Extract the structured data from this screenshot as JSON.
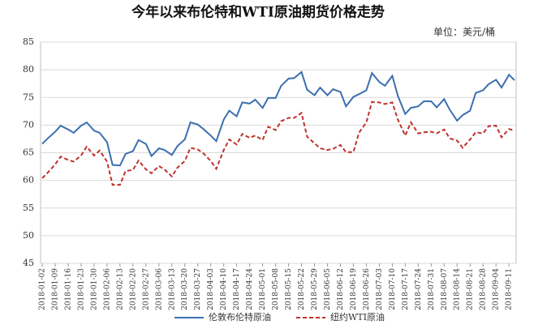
{
  "chart_data": {
    "type": "line",
    "title": "今年以来布伦特和WTI原油期货价格走势",
    "unit": "单位：美元/桶",
    "x": [
      "2018-01-02",
      "2018-01-05",
      "2018-01-09",
      "2018-01-12",
      "2018-01-16",
      "2018-01-19",
      "2018-01-23",
      "2018-01-26",
      "2018-01-30",
      "2018-02-02",
      "2018-02-06",
      "2018-02-09",
      "2018-02-13",
      "2018-02-16",
      "2018-02-20",
      "2018-02-23",
      "2018-02-27",
      "2018-03-02",
      "2018-03-06",
      "2018-03-09",
      "2018-03-13",
      "2018-03-16",
      "2018-03-20",
      "2018-03-23",
      "2018-03-27",
      "2018-03-30",
      "2018-04-03",
      "2018-04-06",
      "2018-04-10",
      "2018-04-13",
      "2018-04-17",
      "2018-04-20",
      "2018-04-24",
      "2018-04-27",
      "2018-05-01",
      "2018-05-04",
      "2018-05-08",
      "2018-05-11",
      "2018-05-15",
      "2018-05-18",
      "2018-05-22",
      "2018-05-25",
      "2018-05-29",
      "2018-06-01",
      "2018-06-05",
      "2018-06-08",
      "2018-06-12",
      "2018-06-15",
      "2018-06-19",
      "2018-06-22",
      "2018-06-26",
      "2018-06-29",
      "2018-07-03",
      "2018-07-06",
      "2018-07-10",
      "2018-07-13",
      "2018-07-17",
      "2018-07-20",
      "2018-07-24",
      "2018-07-27",
      "2018-07-31",
      "2018-08-03",
      "2018-08-07",
      "2018-08-10",
      "2018-08-14",
      "2018-08-17",
      "2018-08-21",
      "2018-08-24",
      "2018-08-28",
      "2018-08-31",
      "2018-09-04",
      "2018-09-07",
      "2018-09-11",
      "2018-09-14"
    ],
    "series": [
      {
        "name": "伦敦布伦特原油",
        "color": "#3c6fb0",
        "dash": false,
        "values": [
          66.6,
          67.6,
          68.8,
          69.9,
          69.2,
          68.6,
          69.9,
          70.5,
          69.0,
          68.6,
          66.9,
          62.8,
          62.7,
          64.8,
          65.3,
          67.3,
          66.6,
          64.4,
          65.8,
          65.5,
          64.6,
          66.2,
          67.4,
          70.5,
          70.1,
          69.3,
          68.1,
          67.1,
          71.0,
          72.6,
          71.6,
          74.1,
          73.9,
          74.6,
          73.1,
          74.9,
          74.9,
          77.1,
          78.4,
          78.5,
          79.6,
          76.4,
          75.4,
          76.8,
          75.4,
          76.5,
          76.0,
          73.4,
          75.1,
          75.6,
          76.3,
          79.4,
          77.8,
          77.1,
          78.9,
          75.3,
          72.0,
          73.1,
          73.4,
          74.3,
          74.3,
          73.2,
          74.7,
          72.8,
          70.8,
          71.8,
          72.6,
          75.8,
          76.3,
          77.4,
          78.2,
          76.8,
          79.1,
          78.1
        ]
      },
      {
        "name": "纽约WTI原油",
        "color": "#c0322d",
        "dash": true,
        "values": [
          60.4,
          61.4,
          62.9,
          64.3,
          63.7,
          63.4,
          64.5,
          66.1,
          64.5,
          65.4,
          63.4,
          59.2,
          59.2,
          61.7,
          61.9,
          63.6,
          62.0,
          61.3,
          62.6,
          62.0,
          60.7,
          62.3,
          63.5,
          65.9,
          65.6,
          64.9,
          63.5,
          62.1,
          65.5,
          67.4,
          66.5,
          68.4,
          67.7,
          68.1,
          67.3,
          69.7,
          69.1,
          70.7,
          71.3,
          71.3,
          72.2,
          67.9,
          66.7,
          65.8,
          65.5,
          65.7,
          66.4,
          65.1,
          65.1,
          68.6,
          70.5,
          74.2,
          74.1,
          73.8,
          74.1,
          71.0,
          68.1,
          70.5,
          68.5,
          68.7,
          68.8,
          68.5,
          69.2,
          67.6,
          67.2,
          65.9,
          67.4,
          68.7,
          68.5,
          69.8,
          69.9,
          67.8,
          69.3,
          69.0
        ]
      }
    ],
    "xlim": [
      "2018-01-02",
      "2018-09-14"
    ],
    "xticks": [
      "2018-01-02",
      "2018-01-09",
      "2018-01-16",
      "2018-01-23",
      "2018-01-30",
      "2018-02-06",
      "2018-02-13",
      "2018-02-20",
      "2018-02-27",
      "2018-03-06",
      "2018-03-13",
      "2018-03-20",
      "2018-03-27",
      "2018-04-03",
      "2018-04-10",
      "2018-04-17",
      "2018-04-24",
      "2018-05-01",
      "2018-05-08",
      "2018-05-15",
      "2018-05-22",
      "2018-05-29",
      "2018-06-05",
      "2018-06-12",
      "2018-06-19",
      "2018-06-26",
      "2018-07-03",
      "2018-07-10",
      "2018-07-17",
      "2018-07-24",
      "2018-07-31",
      "2018-08-07",
      "2018-08-14",
      "2018-08-21",
      "2018-08-28",
      "2018-09-04",
      "2018-09-11"
    ],
    "ylim": [
      45,
      85
    ],
    "yticks": [
      45,
      50,
      55,
      60,
      65,
      70,
      75,
      80,
      85
    ],
    "grid": true
  }
}
